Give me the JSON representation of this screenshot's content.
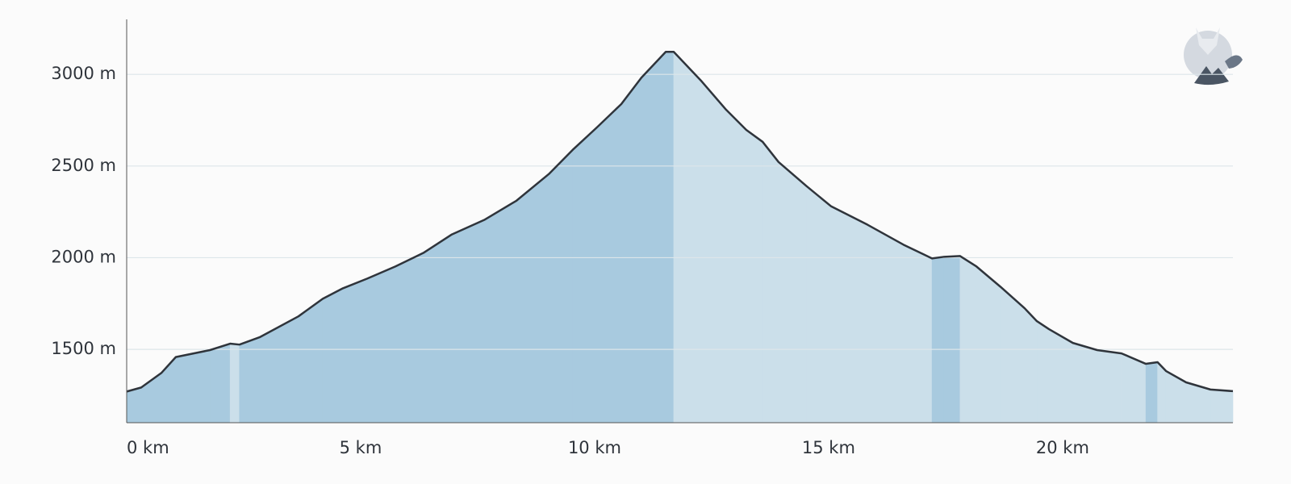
{
  "chart_data": {
    "type": "elevation-profile",
    "x": [
      0,
      0.31,
      0.74,
      1.05,
      1.78,
      2.21,
      2.41,
      2.84,
      3.67,
      4.19,
      4.62,
      5.14,
      5.74,
      6.34,
      6.95,
      7.64,
      8.33,
      9.02,
      9.53,
      10.05,
      10.57,
      11.0,
      11.52,
      11.69,
      12.29,
      12.81,
      13.24,
      13.59,
      13.93,
      14.53,
      15.05,
      15.83,
      16.6,
      17.21,
      17.47,
      17.81,
      18.16,
      18.67,
      19.19,
      19.45,
      19.71,
      20.22,
      20.74,
      21.26,
      21.78,
      22.03,
      22.21,
      22.64,
      23.16,
      23.64
    ],
    "series": [
      {
        "color": "#2f343b",
        "values": [
          1270,
          1292,
          1371,
          1458,
          1496,
          1531,
          1526,
          1566,
          1680,
          1776,
          1833,
          1886,
          1952,
          2026,
          2127,
          2206,
          2311,
          2456,
          2588,
          2711,
          2838,
          2982,
          3123,
          3123,
          2961,
          2807,
          2697,
          2632,
          2522,
          2390,
          2281,
          2180,
          2071,
          1996,
          2005,
          2009,
          1952,
          1842,
          1724,
          1654,
          1610,
          1535,
          1496,
          1478,
          1421,
          1430,
          1382,
          1320,
          1281,
          1272
        ]
      }
    ],
    "ascent_color": "#a8cadf",
    "descent_color": "#cbdfea",
    "xlim": [
      0,
      23.64
    ],
    "ylim": [
      1100,
      3300
    ],
    "xticks": [
      {
        "value": 0,
        "label": "0 km"
      },
      {
        "value": 5,
        "label": "5 km"
      },
      {
        "value": 10,
        "label": "10 km"
      },
      {
        "value": 15,
        "label": "15 km"
      },
      {
        "value": 20,
        "label": "20 km"
      }
    ],
    "yticks": [
      {
        "value": 1500,
        "label": "1500 m"
      },
      {
        "value": 2000,
        "label": "2000 m"
      },
      {
        "value": 2500,
        "label": "2500 m"
      },
      {
        "value": 3000,
        "label": "3000 m"
      }
    ],
    "grid": true
  }
}
